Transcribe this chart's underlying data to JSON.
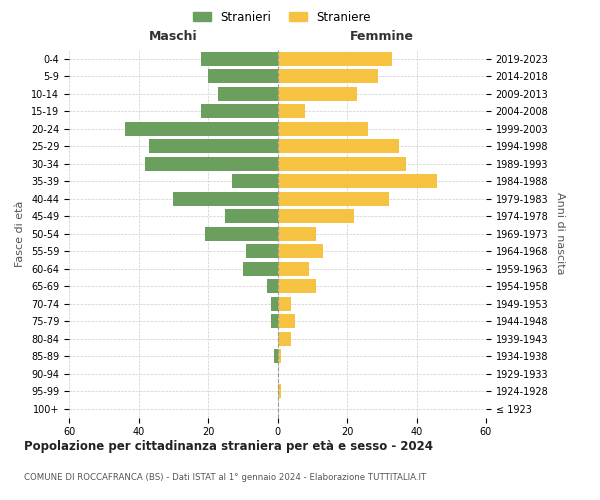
{
  "age_groups": [
    "0-4",
    "5-9",
    "10-14",
    "15-19",
    "20-24",
    "25-29",
    "30-34",
    "35-39",
    "40-44",
    "45-49",
    "50-54",
    "55-59",
    "60-64",
    "65-69",
    "70-74",
    "75-79",
    "80-84",
    "85-89",
    "90-94",
    "95-99",
    "100+"
  ],
  "birth_years": [
    "2019-2023",
    "2014-2018",
    "2009-2013",
    "2004-2008",
    "1999-2003",
    "1994-1998",
    "1989-1993",
    "1984-1988",
    "1979-1983",
    "1974-1978",
    "1969-1973",
    "1964-1968",
    "1959-1963",
    "1954-1958",
    "1949-1953",
    "1944-1948",
    "1939-1943",
    "1934-1938",
    "1929-1933",
    "1924-1928",
    "≤ 1923"
  ],
  "maschi": [
    22,
    20,
    17,
    22,
    44,
    37,
    38,
    13,
    30,
    15,
    21,
    9,
    10,
    3,
    2,
    2,
    0,
    1,
    0,
    0,
    0
  ],
  "femmine": [
    33,
    29,
    23,
    8,
    26,
    35,
    37,
    46,
    32,
    22,
    11,
    13,
    9,
    11,
    4,
    5,
    4,
    1,
    0,
    1,
    0
  ],
  "color_maschi": "#6a9f5e",
  "color_femmine": "#f5c242",
  "title": "Popolazione per cittadinanza straniera per età e sesso - 2024",
  "subtitle": "COMUNE DI ROCCAFRANCA (BS) - Dati ISTAT al 1° gennaio 2024 - Elaborazione TUTTITALIA.IT",
  "xlabel_left": "Maschi",
  "xlabel_right": "Femmine",
  "ylabel_left": "Fasce di età",
  "ylabel_right": "Anni di nascita",
  "legend_maschi": "Stranieri",
  "legend_femmine": "Straniere",
  "xlim": 60,
  "background_color": "#ffffff",
  "grid_color": "#cccccc"
}
